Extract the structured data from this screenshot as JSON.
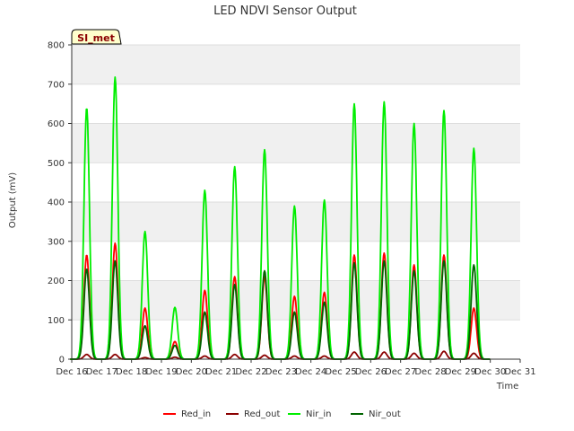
{
  "chart_data": {
    "type": "line",
    "title": "LED NDVI Sensor Output",
    "xlabel": "Time",
    "ylabel": "Output (mV)",
    "site_badge": "SI_met",
    "ylim": [
      0,
      800
    ],
    "xlim": [
      16,
      31
    ],
    "y_ticks": [
      "0",
      "100",
      "200",
      "300",
      "400",
      "500",
      "600",
      "700",
      "800"
    ],
    "x_ticks": [
      "Dec 16",
      "Dec 17",
      "Dec 18",
      "Dec 19",
      "Dec 20",
      "Dec 21",
      "Dec 22",
      "Dec 23",
      "Dec 24",
      "Dec 25",
      "Dec 26",
      "Dec 27",
      "Dec 28",
      "Dec 29",
      "Dec 30",
      "Dec 31"
    ],
    "grid": "horizontal bands",
    "legend_position": "bottom",
    "series": [
      {
        "name": "Red_in",
        "color": "#ff0000",
        "peaks": [
          {
            "day": 16.5,
            "value": 265
          },
          {
            "day": 17.45,
            "value": 295
          },
          {
            "day": 18.45,
            "value": 130
          },
          {
            "day": 19.45,
            "value": 45
          },
          {
            "day": 20.45,
            "value": 175
          },
          {
            "day": 21.45,
            "value": 210
          },
          {
            "day": 22.45,
            "value": 210
          },
          {
            "day": 23.45,
            "value": 160
          },
          {
            "day": 24.45,
            "value": 170
          },
          {
            "day": 25.45,
            "value": 265
          },
          {
            "day": 26.45,
            "value": 270
          },
          {
            "day": 27.45,
            "value": 240
          },
          {
            "day": 28.45,
            "value": 265
          },
          {
            "day": 29.45,
            "value": 130
          }
        ]
      },
      {
        "name": "Red_out",
        "color": "#8b0000",
        "peaks": [
          {
            "day": 16.5,
            "value": 12
          },
          {
            "day": 17.45,
            "value": 12
          },
          {
            "day": 18.45,
            "value": 4
          },
          {
            "day": 19.45,
            "value": 5
          },
          {
            "day": 20.45,
            "value": 8
          },
          {
            "day": 21.45,
            "value": 12
          },
          {
            "day": 22.45,
            "value": 10
          },
          {
            "day": 23.45,
            "value": 8
          },
          {
            "day": 24.45,
            "value": 8
          },
          {
            "day": 25.45,
            "value": 18
          },
          {
            "day": 26.45,
            "value": 18
          },
          {
            "day": 27.45,
            "value": 15
          },
          {
            "day": 28.45,
            "value": 20
          },
          {
            "day": 29.45,
            "value": 15
          }
        ]
      },
      {
        "name": "Nir_in",
        "color": "#00ee00",
        "peaks": [
          {
            "day": 16.5,
            "value": 640
          },
          {
            "day": 17.45,
            "value": 718
          },
          {
            "day": 18.45,
            "value": 325
          },
          {
            "day": 19.45,
            "value": 132
          },
          {
            "day": 20.45,
            "value": 430
          },
          {
            "day": 21.45,
            "value": 490
          },
          {
            "day": 22.45,
            "value": 533
          },
          {
            "day": 23.45,
            "value": 390
          },
          {
            "day": 24.45,
            "value": 405
          },
          {
            "day": 25.45,
            "value": 650
          },
          {
            "day": 26.45,
            "value": 655
          },
          {
            "day": 27.45,
            "value": 600
          },
          {
            "day": 28.45,
            "value": 633
          },
          {
            "day": 29.45,
            "value": 537
          }
        ]
      },
      {
        "name": "Nir_out",
        "color": "#006400",
        "peaks": [
          {
            "day": 16.5,
            "value": 230
          },
          {
            "day": 17.45,
            "value": 250
          },
          {
            "day": 18.45,
            "value": 85
          },
          {
            "day": 19.45,
            "value": 35
          },
          {
            "day": 20.45,
            "value": 120
          },
          {
            "day": 21.45,
            "value": 190
          },
          {
            "day": 22.45,
            "value": 225
          },
          {
            "day": 23.45,
            "value": 120
          },
          {
            "day": 24.45,
            "value": 145
          },
          {
            "day": 25.45,
            "value": 245
          },
          {
            "day": 26.45,
            "value": 250
          },
          {
            "day": 27.45,
            "value": 225
          },
          {
            "day": 28.45,
            "value": 250
          },
          {
            "day": 29.45,
            "value": 240
          }
        ]
      }
    ]
  }
}
